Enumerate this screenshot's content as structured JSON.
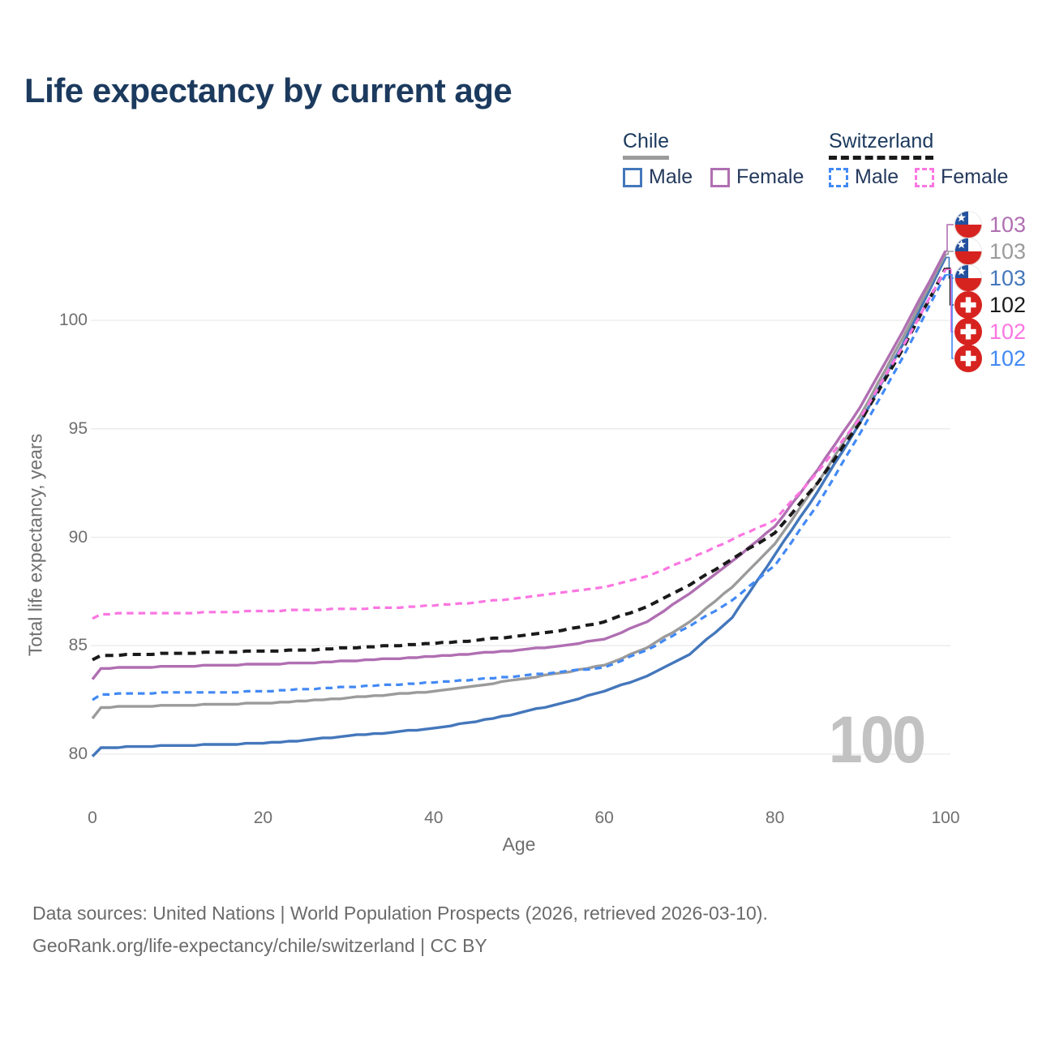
{
  "title": "Life expectancy by current age",
  "legend": {
    "chile": {
      "label": "Chile",
      "male": "Male",
      "female": "Female"
    },
    "switzerland": {
      "label": "Switzerland",
      "male": "Male",
      "female": "Female"
    }
  },
  "watermark": "100",
  "footer": {
    "line1": "Data sources: United Nations | World Population Prospects (2026, retrieved 2026-03-10).",
    "line2": "GeoRank.org/life-expectancy/chile/switzerland | CC BY"
  },
  "colors": {
    "title": "#1c3a5e",
    "axis_text": "#6f6f6f",
    "grid": "#e9e9e9",
    "watermark": "#c2c2c2",
    "chile_male": "#4477bb",
    "chile_female": "#b06fb2",
    "chile_total": "#9b9b9b",
    "swiss_male": "#4289f5",
    "swiss_female": "#fb76e1",
    "swiss_total": "#1a1a1a",
    "flag_red": "#d7231f",
    "flag_blue": "#23519e",
    "flag_white": "#ffffff"
  },
  "chart_data": {
    "type": "line",
    "title": "Life expectancy by current age",
    "xlabel": "Age",
    "ylabel": "Total life expectancy, years",
    "x_ticks": [
      0,
      20,
      40,
      60,
      80,
      100
    ],
    "y_ticks": [
      80,
      85,
      90,
      95,
      100
    ],
    "xlim": [
      0,
      100
    ],
    "ylim": [
      79.5,
      103.5
    ],
    "grid": "horizontal-only",
    "legend_position": "top-right",
    "ages": [
      0,
      1,
      5,
      10,
      15,
      20,
      25,
      30,
      35,
      40,
      45,
      50,
      55,
      60,
      65,
      70,
      75,
      80,
      85,
      90,
      95,
      100
    ],
    "series": [
      {
        "name": "Chile Male",
        "country": "Chile",
        "sex": "Male",
        "style": "solid",
        "color": "#4477bb",
        "flag": "chile",
        "end_label": "103",
        "values": [
          79.9,
          80.3,
          80.35,
          80.4,
          80.45,
          80.5,
          80.65,
          80.85,
          81.0,
          81.2,
          81.5,
          81.9,
          82.35,
          82.9,
          83.6,
          84.6,
          86.3,
          89.2,
          92.1,
          95.3,
          98.9,
          102.9
        ]
      },
      {
        "name": "Chile Both sexes",
        "country": "Chile",
        "sex": "Both",
        "style": "solid",
        "color": "#9b9b9b",
        "flag": "chile",
        "end_label": "103",
        "values": [
          81.65,
          82.15,
          82.2,
          82.25,
          82.3,
          82.35,
          82.45,
          82.6,
          82.75,
          82.9,
          83.15,
          83.45,
          83.75,
          84.1,
          84.9,
          86.1,
          87.7,
          89.7,
          92.5,
          95.6,
          99.2,
          103.05
        ]
      },
      {
        "name": "Chile Female",
        "country": "Chile",
        "sex": "Female",
        "style": "solid",
        "color": "#b06fb2",
        "flag": "chile",
        "end_label": "103",
        "values": [
          83.45,
          83.95,
          84.0,
          84.05,
          84.1,
          84.15,
          84.2,
          84.3,
          84.4,
          84.5,
          84.65,
          84.8,
          85.0,
          85.3,
          86.1,
          87.4,
          88.9,
          90.5,
          93.1,
          96.0,
          99.5,
          103.2
        ]
      },
      {
        "name": "Switzerland Male",
        "country": "Switzerland",
        "sex": "Male",
        "style": "dashed",
        "color": "#4289f5",
        "flag": "swiss",
        "end_label": "102",
        "values": [
          82.5,
          82.75,
          82.8,
          82.85,
          82.85,
          82.9,
          83.0,
          83.1,
          83.2,
          83.3,
          83.45,
          83.6,
          83.8,
          84.0,
          84.8,
          85.9,
          87.1,
          88.7,
          91.5,
          94.8,
          98.3,
          102.1
        ]
      },
      {
        "name": "Switzerland Both sexes",
        "country": "Switzerland",
        "sex": "Both",
        "style": "dashed",
        "color": "#1a1a1a",
        "flag": "swiss",
        "end_label": "102",
        "values": [
          84.35,
          84.55,
          84.6,
          84.65,
          84.7,
          84.75,
          84.8,
          84.9,
          85.0,
          85.1,
          85.25,
          85.45,
          85.7,
          86.1,
          86.8,
          87.8,
          89.0,
          90.2,
          92.5,
          95.3,
          98.7,
          102.4
        ]
      },
      {
        "name": "Switzerland Female",
        "country": "Switzerland",
        "sex": "Female",
        "style": "dashed",
        "color": "#fb76e1",
        "flag": "swiss",
        "end_label": "102",
        "values": [
          86.25,
          86.45,
          86.5,
          86.5,
          86.55,
          86.6,
          86.65,
          86.7,
          86.75,
          86.85,
          87.0,
          87.2,
          87.45,
          87.7,
          88.2,
          89.0,
          89.9,
          90.8,
          93.0,
          95.5,
          98.8,
          102.35
        ]
      }
    ]
  }
}
